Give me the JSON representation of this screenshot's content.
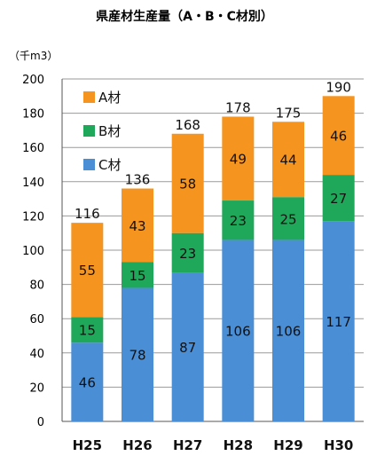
{
  "chart_data": {
    "type": "bar",
    "stacked": true,
    "title": "県産材生産量（A・B・C材別）",
    "unit_label": "（千m3）",
    "categories": [
      "H25",
      "H26",
      "H27",
      "H28",
      "H29",
      "H30"
    ],
    "series": [
      {
        "name": "C材",
        "values": [
          46,
          78,
          87,
          106,
          106,
          117
        ],
        "color": "#4a8fd6"
      },
      {
        "name": "B材",
        "values": [
          15,
          15,
          23,
          23,
          25,
          27
        ],
        "color": "#1fa85a"
      },
      {
        "name": "A材",
        "values": [
          55,
          43,
          58,
          49,
          44,
          46
        ],
        "color": "#f5951f"
      }
    ],
    "totals": [
      116,
      136,
      168,
      178,
      175,
      190
    ],
    "ylim": [
      0,
      200
    ],
    "yticks": [
      0,
      20,
      40,
      60,
      80,
      100,
      120,
      140,
      160,
      180,
      200
    ],
    "grid": true,
    "legend": "top-left",
    "legend_order": [
      "A材",
      "B材",
      "C材"
    ]
  }
}
